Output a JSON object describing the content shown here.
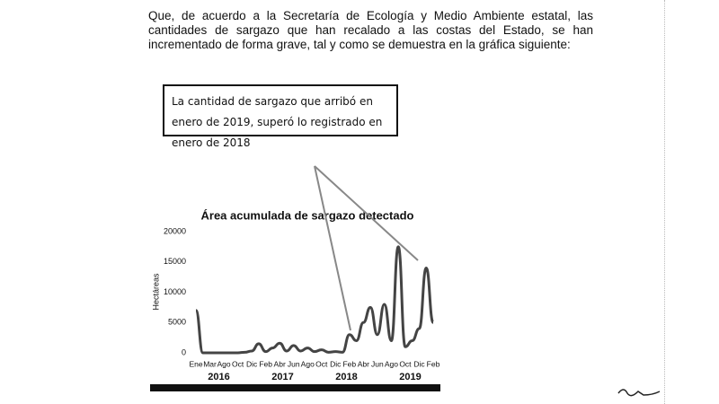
{
  "paragraph": "Que, de acuerdo a la Secretaría de Ecología y Medio Ambiente estatal, las cantidades de sargazo que han recalado a las costas del Estado, se han incrementado de forma grave, tal y como se demuestra en la gráfica siguiente:",
  "callout": "La cantidad de sargazo que arribó en enero de 2019, superó lo registrado en enero de 2018",
  "chart_data": {
    "type": "line",
    "title": "Área acumulada de sargazo detectado",
    "y_label": "Hectáreas",
    "categories": [
      "Ene",
      null,
      "Mar",
      null,
      "Ago",
      null,
      "Oct",
      null,
      "Dic",
      null,
      "Feb",
      null,
      "Abr",
      null,
      "Jun",
      null,
      "Ago",
      null,
      "Oct",
      null,
      "Dic",
      null,
      "Feb",
      null,
      "Abr",
      null,
      "Jun",
      null,
      "Ago",
      null,
      "Oct",
      null,
      "Dic",
      null,
      "Feb"
    ],
    "values": [
      7000,
      0,
      0,
      0,
      0,
      0,
      0,
      100,
      300,
      1500,
      200,
      800,
      1600,
      300,
      1200,
      300,
      800,
      200,
      500,
      100,
      200,
      100,
      3000,
      2000,
      5000,
      7500,
      3000,
      8000,
      2000,
      17500,
      1000,
      2000,
      4000,
      14000,
      5000
    ],
    "color": "#444444",
    "years": [
      "2016",
      "2017",
      "2018",
      "2019"
    ],
    "ylim": [
      0,
      20000
    ],
    "yticks": [
      0,
      5000,
      10000,
      15000,
      20000
    ]
  }
}
